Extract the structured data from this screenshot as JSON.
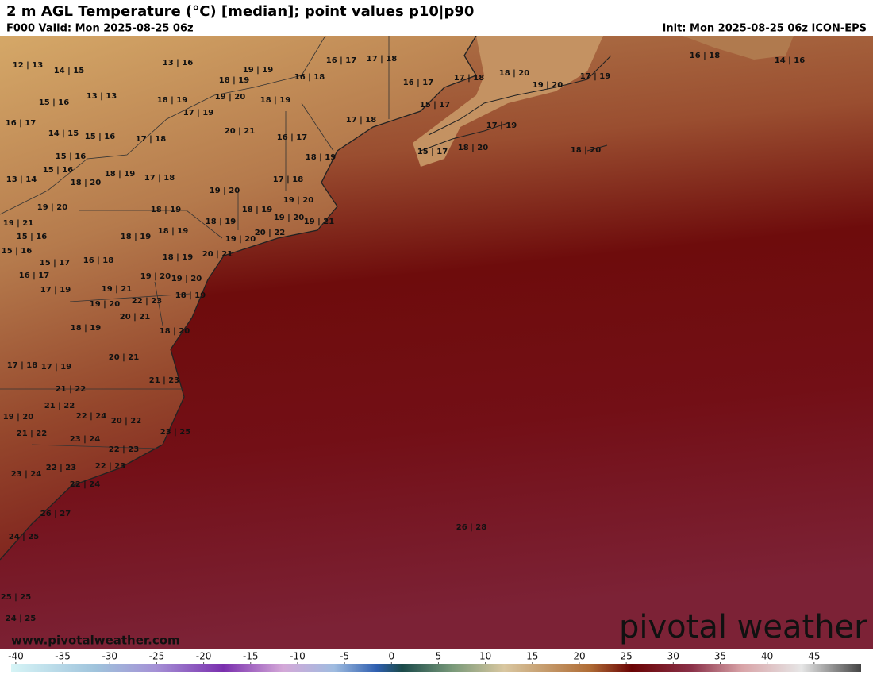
{
  "header": {
    "title": "2 m AGL Temperature (°C) [median]; point values p10|p90",
    "valid": "F000 Valid: Mon 2025-08-25 06z",
    "init": "Init: Mon 2025-08-25 06z ICON-EPS"
  },
  "points": [
    "12 | 13",
    "14 | 15",
    "13 | 16",
    "19 | 19",
    "16 | 17",
    "17 | 18",
    "16 | 18",
    "14 | 16",
    "18 | 19",
    "16 | 18",
    "16 | 17",
    "17 | 18",
    "18 | 20",
    "19 | 20",
    "17 | 19",
    "13 | 13",
    "15 | 16",
    "18 | 19",
    "19 | 20",
    "18 | 19",
    "15 | 17",
    "17 | 19",
    "16 | 17",
    "17 | 18",
    "20 | 21",
    "17 | 19",
    "14 | 15",
    "15 | 16",
    "17 | 18",
    "16 | 17",
    "18 | 20",
    "18 | 20",
    "15 | 16",
    "15 | 17",
    "18 | 19",
    "15 | 16",
    "18 | 19",
    "17 | 18",
    "13 | 14",
    "18 | 20",
    "17 | 18",
    "19 | 20",
    "19 | 20",
    "19 | 20",
    "18 | 19",
    "18 | 19",
    "19 | 20",
    "19 | 21",
    "19 | 21",
    "18 | 19",
    "18 | 19",
    "20 | 22",
    "15 | 16",
    "18 | 19",
    "19 | 20",
    "15 | 16",
    "20 | 21",
    "18 | 19",
    "15 | 17",
    "16 | 18",
    "16 | 17",
    "19 | 20",
    "19 | 20",
    "17 | 19",
    "19 | 21",
    "18 | 19",
    "22 | 23",
    "19 | 20",
    "20 | 21",
    "18 | 19",
    "18 | 20",
    "20 | 21",
    "17 | 18",
    "17 | 19",
    "21 | 23",
    "21 | 22",
    "21 | 22",
    "22 | 24",
    "19 | 20",
    "20 | 22",
    "21 | 22",
    "23 | 25",
    "23 | 24",
    "22 | 23",
    "22 | 23",
    "22 | 23",
    "23 | 24",
    "22 | 24",
    "26 | 27",
    "26 | 28",
    "24 | 25",
    "25 | 25",
    "24 | 25"
  ],
  "colorbar": {
    "lim": [
      -40.5,
      50
    ],
    "ticks": [
      -40,
      -35,
      -30,
      -25,
      -20,
      -15,
      -10,
      -5,
      0,
      5,
      10,
      15,
      20,
      25,
      30,
      35,
      40,
      45
    ]
  },
  "watermark": {
    "logo": "pivotal weather",
    "url": "www.pivotalweather.com"
  }
}
